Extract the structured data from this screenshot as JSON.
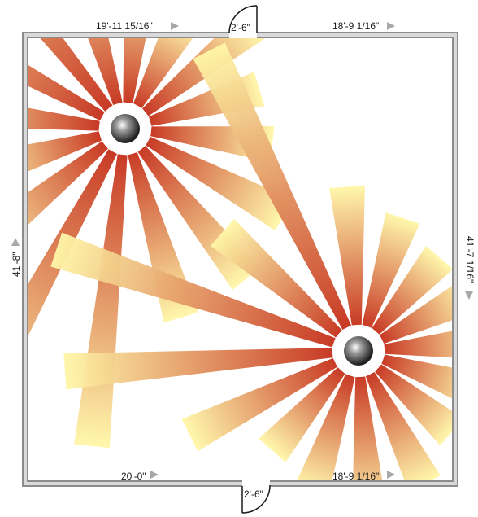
{
  "dimensions": {
    "top_left": "19'-11 15/16\"",
    "top_door": "2'-6\"",
    "top_right": "18'-9 1/16\"",
    "left": "41'-8\"",
    "right": "41'-7 1/16\"",
    "bottom_left": "20'-0\"",
    "bottom_right": "18'-9 1/16\"",
    "bottom_door": "2'-6\""
  },
  "colors": {
    "wall": "#8c8c8c",
    "blade_base": "#c5301a",
    "blade_tip": "#fff7a8",
    "hub": "#3a3a3a",
    "arrow": "#a8a8a8"
  },
  "fans": [
    {
      "name": "fan-top-left",
      "blades": 16,
      "blade_lengths": [
        150,
        190,
        205,
        210,
        360,
        380,
        205,
        150,
        210,
        310,
        360,
        220,
        170,
        120,
        170,
        140
      ]
    },
    {
      "name": "fan-bottom-right",
      "blades": 16,
      "blade_lengths": [
        130,
        120,
        120,
        150,
        170,
        150,
        130,
        200,
        330,
        360,
        190,
        380,
        170,
        140,
        120,
        120
      ]
    }
  ]
}
